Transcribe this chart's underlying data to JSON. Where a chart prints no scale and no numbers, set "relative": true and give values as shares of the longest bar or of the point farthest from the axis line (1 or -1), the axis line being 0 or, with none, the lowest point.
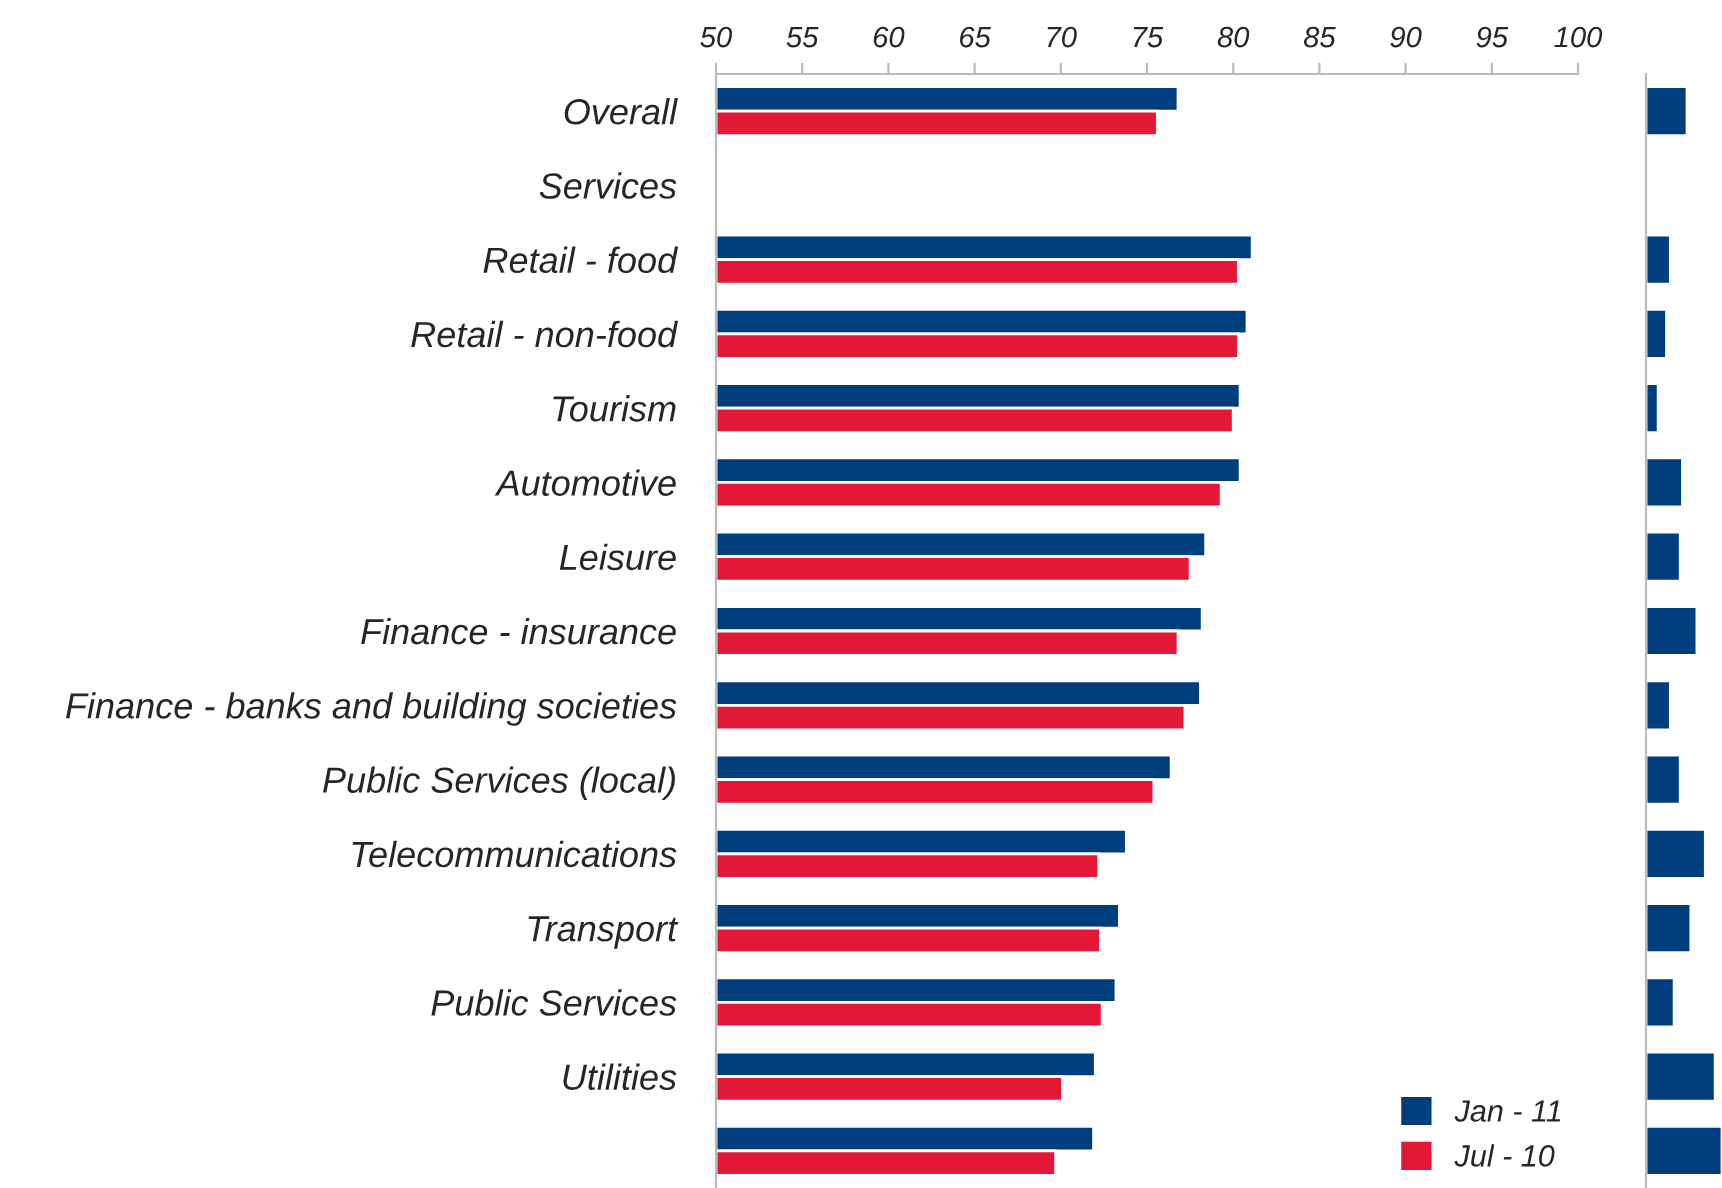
{
  "chart_data": [
    {
      "type": "bar",
      "orientation": "horizontal",
      "categories": [
        "Overall",
        "Services",
        "Retail - food",
        "Retail - non-food",
        "Tourism",
        "Automotive",
        "Leisure",
        "Finance - insurance",
        "Finance - banks and building societies",
        "Public Services (local)",
        "Telecommunications",
        "Transport",
        "Public Services",
        "Utilities",
        null
      ],
      "series": [
        {
          "name": "Jan - 11",
          "color": "#003d7d",
          "values": [
            76.8,
            null,
            81.1,
            80.8,
            80.4,
            80.4,
            78.4,
            78.2,
            78.1,
            76.4,
            73.8,
            73.4,
            73.2,
            72.0,
            71.9
          ]
        },
        {
          "name": "Jul - 10",
          "color": "#e31837",
          "values": [
            75.6,
            null,
            80.3,
            80.3,
            80.0,
            79.3,
            77.5,
            76.8,
            77.2,
            75.4,
            72.2,
            72.3,
            72.4,
            70.1,
            69.7
          ]
        }
      ],
      "xlim": [
        50,
        100
      ],
      "xticks": [
        50,
        55,
        60,
        65,
        70,
        75,
        80,
        85,
        90,
        95,
        100
      ],
      "legend": "bottom right",
      "grid": false
    },
    {
      "type": "bar",
      "orientation": "horizontal",
      "relative": true,
      "categories": [
        null,
        null,
        null,
        null,
        null,
        null,
        null,
        null,
        null,
        null,
        null,
        null,
        null,
        null,
        null
      ],
      "values": [
        0.54,
        null,
        0.32,
        0.27,
        0.16,
        0.48,
        0.45,
        0.67,
        0.32,
        0.45,
        0.78,
        0.59,
        0.37,
        0.91,
        1
      ],
      "color": "#003d7d",
      "grid": false
    }
  ]
}
